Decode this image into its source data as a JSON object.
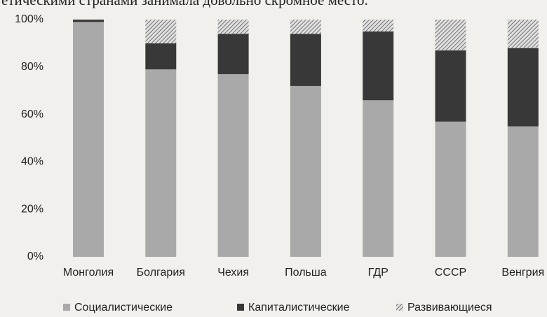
{
  "header_text": "етическими странами занимала довольно скромное место.",
  "chart_data": {
    "type": "stacked_bar",
    "categories": [
      "Монголия",
      "Болгария",
      "Чехия",
      "Польша",
      "ГДР",
      "СССР",
      "Венгрия"
    ],
    "series": [
      {
        "name": "Социалистические",
        "color": "#a9a9a9",
        "values": [
          99,
          79,
          77,
          72,
          66,
          57,
          55
        ]
      },
      {
        "name": "Капиталистические",
        "color": "#383838",
        "values": [
          1,
          11,
          17,
          22,
          29,
          30,
          33
        ]
      },
      {
        "name": "Развивающиеся",
        "color": "#d0d0d0",
        "values": [
          0,
          10,
          6,
          6,
          5,
          13,
          12
        ]
      }
    ],
    "ylim": [
      0,
      100
    ],
    "yticks": [
      {
        "value": 0,
        "label": "0%"
      },
      {
        "value": 20,
        "label": "20%"
      },
      {
        "value": 40,
        "label": "40%"
      },
      {
        "value": 60,
        "label": "60%"
      },
      {
        "value": 80,
        "label": "80%"
      },
      {
        "value": 100,
        "label": "100%"
      }
    ],
    "grid": false,
    "legend": "bottom"
  }
}
